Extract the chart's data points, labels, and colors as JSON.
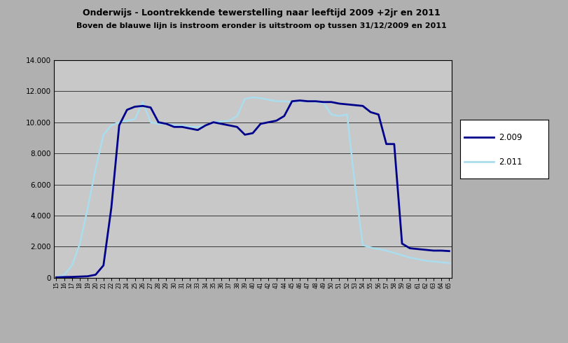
{
  "title1": "Onderwijs - Loontrekkende tewerstelling naar leeftijd 2009 +2jr en 2011",
  "title2": "Boven de blauwe lijn is instroom eronder is uitstroom op tussen 31/12/2009 en 2011",
  "legend_labels": [
    "2.009",
    "2.011"
  ],
  "line_color_2009": "#00008B",
  "line_color_2011": "#AADDEE",
  "plot_bg": "#C8C8C8",
  "fig_bg": "#B0B0B0",
  "ylim": [
    0,
    14000
  ],
  "yticks": [
    0,
    2000,
    4000,
    6000,
    8000,
    10000,
    12000,
    14000
  ],
  "ytick_labels": [
    "0",
    "2.000",
    "4.000",
    "6.000",
    "8.000",
    "10.000",
    "12.000",
    "14.000"
  ],
  "ages": [
    15,
    16,
    17,
    18,
    19,
    20,
    21,
    22,
    23,
    24,
    25,
    26,
    27,
    28,
    29,
    30,
    31,
    32,
    33,
    34,
    35,
    36,
    37,
    38,
    39,
    40,
    41,
    42,
    43,
    44,
    45,
    46,
    47,
    48,
    49,
    50,
    51,
    52,
    53,
    54,
    55,
    56,
    57,
    58,
    59,
    60,
    61,
    62,
    63,
    64,
    65
  ],
  "series_2009": [
    30,
    50,
    60,
    80,
    100,
    200,
    800,
    4500,
    9800,
    10800,
    11000,
    11050,
    10950,
    10000,
    9900,
    9700,
    9700,
    9600,
    9500,
    9800,
    10000,
    9900,
    9800,
    9700,
    9200,
    9300,
    9900,
    10000,
    10100,
    10400,
    11350,
    11400,
    11350,
    11350,
    11300,
    11300,
    11200,
    11150,
    11100,
    11050,
    10650,
    10500,
    8600,
    8600,
    2200,
    1900,
    1850,
    1800,
    1750,
    1750,
    1720
  ],
  "series_2011": [
    30,
    200,
    800,
    2200,
    4500,
    7000,
    9200,
    9800,
    10000,
    10100,
    10200,
    11300,
    10000,
    9900,
    9900,
    9800,
    9800,
    9700,
    9700,
    9800,
    10000,
    10050,
    10100,
    10400,
    11500,
    11600,
    11550,
    11450,
    11350,
    11350,
    11300,
    11350,
    11350,
    11300,
    11250,
    10500,
    10400,
    10500,
    6000,
    2100,
    1950,
    1850,
    1750,
    1600,
    1450,
    1300,
    1200,
    1100,
    1050,
    1000,
    950
  ]
}
